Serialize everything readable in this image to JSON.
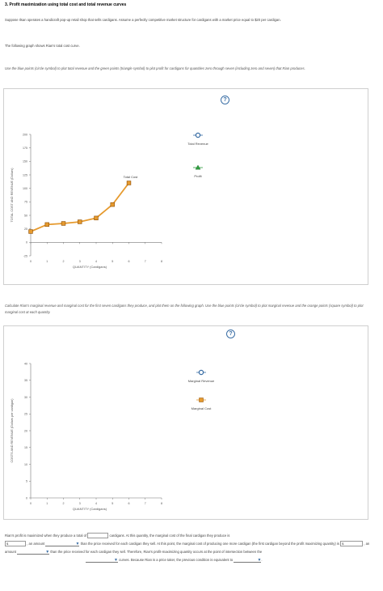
{
  "title": "3. Profit maximization using total cost and total revenue curves",
  "intro": "Suppose Ilsan operates a handicraft pop-up retail shop that sells cardigans. Assume a perfectly competitive market structure for cardigans with a market price equal to $20 per cardigan.",
  "graph_intro": "The following graph shows Rian's total cost curve.",
  "instruction1": "Use the blue points (circle symbol) to plot total revenue and the green points (triangle symbol) to plot profit for cardigans for quantities zero through seven (including zero and seven) that Rian produces.",
  "instruction2": "Calculate Rian's marginal revenue and marginal cost for the first seven cardigans they produce, and plot them on the following graph. Use the blue points (circle symbol) to plot marginal revenue and the orange points (square symbol) to plot marginal cost at each quantity.",
  "help_icon": "?",
  "chart_data": [
    {
      "type": "line",
      "ylabel": "TOTAL COST AND REVENUE (Dollars)",
      "xlabel": "QUANTITY (Cardigans)",
      "x_ticks": [
        "0",
        "1",
        "2",
        "3",
        "4",
        "5",
        "6",
        "7",
        "8"
      ],
      "y_ticks": [
        "200",
        "175",
        "150",
        "125",
        "100",
        "75",
        "50",
        "25",
        "0",
        "-25"
      ],
      "ylim": [
        -25,
        200
      ],
      "xlim": [
        0,
        8
      ],
      "series": [
        {
          "name": "Total Cost",
          "color": "#e69a2e",
          "marker": "square",
          "x": [
            0,
            1,
            2,
            3,
            4,
            5,
            6
          ],
          "y": [
            20,
            33,
            35,
            38,
            45,
            70,
            110
          ]
        }
      ],
      "curve_label": "Total Cost",
      "legend": [
        {
          "label": "Total Revenue",
          "marker": "circle",
          "color": "#3a6ea5"
        },
        {
          "label": "Profit",
          "marker": "triangle",
          "color": "#2e9e3e"
        }
      ]
    },
    {
      "type": "scatter",
      "ylabel": "COSTS AND REVENUE (Dollars per cardigan)",
      "xlabel": "QUANTITY (Cardigans)",
      "x_ticks": [
        "0",
        "1",
        "2",
        "3",
        "4",
        "5",
        "6",
        "7",
        "8"
      ],
      "y_ticks": [
        "40",
        "35",
        "30",
        "25",
        "20",
        "15",
        "10",
        "5",
        "0"
      ],
      "ylim": [
        0,
        40
      ],
      "xlim": [
        0,
        8
      ],
      "legend": [
        {
          "label": "Marginal Revenue",
          "marker": "circle",
          "color": "#3a6ea5"
        },
        {
          "label": "Marginal Cost",
          "marker": "square",
          "color": "#e69a2e"
        }
      ]
    }
  ],
  "question": {
    "s1": "Rian's profit is maximized when they produce a total of",
    "s2": "cardigans. At this quantity, the marginal cost of the final cardigan they produce is",
    "s3": ", an amount",
    "s4": "than the price received for each cardigan they sell. At this point, the marginal cost of producing one more cardigan (the first cardigan beyond the profit maximizing quantity) is",
    "s5": ", an amount",
    "s6": "than the price received for each cardigan they sell. Therefore, Rian's profit-maximizing quantity occurs at the point of intersection between the",
    "s7": "curves. Because Rian is a price taker, the previous condition is equivalent to",
    "dollar": "$"
  }
}
